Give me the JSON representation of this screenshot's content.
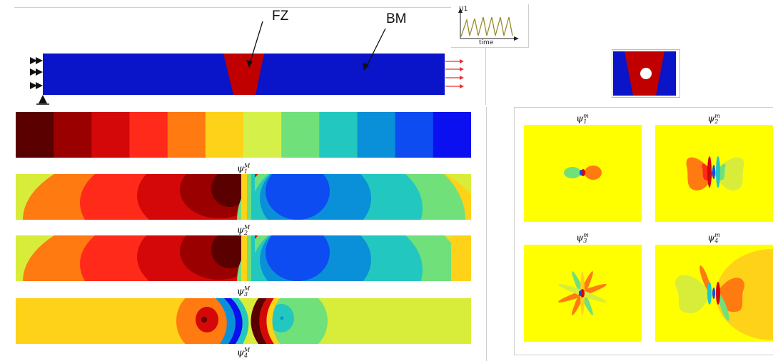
{
  "schematic": {
    "fz_label": "FZ",
    "bm_label": "BM",
    "colors": {
      "bm": "#0a14c8",
      "fz": "#c00000",
      "arrow": "#e83030",
      "hole": "#ffffff"
    }
  },
  "inset": {
    "y_label": "U1",
    "x_label": "time",
    "line_color": "#9a8a2a"
  },
  "macro_modes": [
    {
      "symbol": "ψ",
      "sup": "M",
      "sub": "1"
    },
    {
      "symbol": "ψ",
      "sup": "M",
      "sub": "2"
    },
    {
      "symbol": "ψ",
      "sup": "M",
      "sub": "3"
    },
    {
      "symbol": "ψ",
      "sup": "M",
      "sub": "4"
    }
  ],
  "micro_modes": [
    {
      "symbol": "ψ",
      "sup": "m",
      "sub": "1"
    },
    {
      "symbol": "ψ",
      "sup": "m",
      "sub": "2"
    },
    {
      "symbol": "ψ",
      "sup": "m",
      "sub": "3"
    },
    {
      "symbol": "ψ",
      "sup": "m",
      "sub": "4"
    }
  ],
  "colorbar": [
    "#5a0000",
    "#9a0000",
    "#d40808",
    "#ff2a1a",
    "#ff7a10",
    "#ffd21a",
    "#d6f04a",
    "#70e07a",
    "#22c8c0",
    "#0a90d8",
    "#0c4cf0",
    "#0a10f0"
  ],
  "field_colors": {
    "background": "#ffff00",
    "outer": "#d8ec3a"
  }
}
